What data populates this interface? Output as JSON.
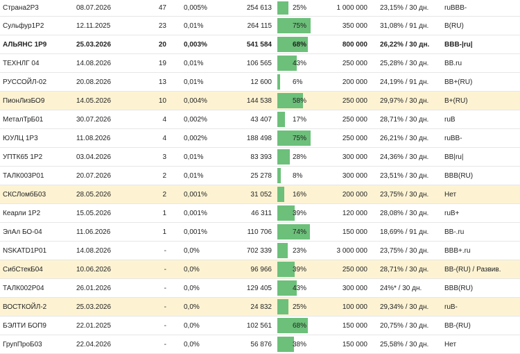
{
  "rows": [
    {
      "name": "Страна2Р3",
      "date": "08.07.2026",
      "count": "47",
      "pct": "0,005%",
      "volume": "254 613",
      "share": "25%",
      "share_v": 0.25,
      "amount": "1 000 000",
      "yield": "23,15% / 30 дн.",
      "rating": "ruBBB-",
      "hl": false,
      "bold": false
    },
    {
      "name": "Сульфур1Р2",
      "date": "12.11.2025",
      "count": "23",
      "pct": "0,01%",
      "volume": "264 115",
      "share": "75%",
      "share_v": 0.75,
      "amount": "350 000",
      "yield": "31,08% / 91 дн.",
      "rating": "B(RU)",
      "hl": false,
      "bold": false
    },
    {
      "name": "АЛЬЯНС 1Р9",
      "date": "25.03.2026",
      "count": "20",
      "pct": "0,003%",
      "volume": "541 584",
      "share": "68%",
      "share_v": 0.68,
      "amount": "800 000",
      "yield": "26,22% / 30 дн.",
      "rating": "BBB-|ru|",
      "hl": false,
      "bold": true
    },
    {
      "name": "ТЕХНЛГ 04",
      "date": "14.08.2026",
      "count": "19",
      "pct": "0,01%",
      "volume": "106 565",
      "share": "43%",
      "share_v": 0.43,
      "amount": "250 000",
      "yield": "25,28% / 30 дн.",
      "rating": "BB.ru",
      "hl": false,
      "bold": false
    },
    {
      "name": "РУССОЙЛ-02",
      "date": "20.08.2026",
      "count": "13",
      "pct": "0,01%",
      "volume": "12 600",
      "share": "6%",
      "share_v": 0.06,
      "amount": "200 000",
      "yield": "24,19% / 91 дн.",
      "rating": "BB+(RU)",
      "hl": false,
      "bold": false
    },
    {
      "name": "ПионЛизБО9",
      "date": "14.05.2026",
      "count": "10",
      "pct": "0,004%",
      "volume": "144 538",
      "share": "58%",
      "share_v": 0.58,
      "amount": "250 000",
      "yield": "29,97% / 30 дн.",
      "rating": "B+(RU)",
      "hl": true,
      "bold": false
    },
    {
      "name": "МеталТрБ01",
      "date": "30.07.2026",
      "count": "4",
      "pct": "0,002%",
      "volume": "43 407",
      "share": "17%",
      "share_v": 0.17,
      "amount": "250 000",
      "yield": "28,71% / 30 дн.",
      "rating": "ruB",
      "hl": false,
      "bold": false
    },
    {
      "name": "ЮУЛЦ 1Р3",
      "date": "11.08.2026",
      "count": "4",
      "pct": "0,002%",
      "volume": "188 498",
      "share": "75%",
      "share_v": 0.75,
      "amount": "250 000",
      "yield": "26,21% / 30 дн.",
      "rating": "ruBB-",
      "hl": false,
      "bold": false
    },
    {
      "name": "УПТК65 1Р2",
      "date": "03.04.2026",
      "count": "3",
      "pct": "0,01%",
      "volume": "83 393",
      "share": "28%",
      "share_v": 0.28,
      "amount": "300 000",
      "yield": "24,36% / 30 дн.",
      "rating": "BB|ru|",
      "hl": false,
      "bold": false
    },
    {
      "name": "ТАЛК003Р01",
      "date": "20.07.2026",
      "count": "2",
      "pct": "0,01%",
      "volume": "25 278",
      "share": "8%",
      "share_v": 0.08,
      "amount": "300 000",
      "yield": "23,51% / 30 дн.",
      "rating": "BBB(RU)",
      "hl": false,
      "bold": false
    },
    {
      "name": "СКСЛомбБ03",
      "date": "28.05.2026",
      "count": "2",
      "pct": "0,001%",
      "volume": "31 052",
      "share": "16%",
      "share_v": 0.16,
      "amount": "200 000",
      "yield": "23,75% / 30 дн.",
      "rating": "Нет",
      "hl": true,
      "bold": false
    },
    {
      "name": "Кеарли 1Р2",
      "date": "15.05.2026",
      "count": "1",
      "pct": "0,001%",
      "volume": "46 311",
      "share": "39%",
      "share_v": 0.39,
      "amount": "120 000",
      "yield": "28,08% / 30 дн.",
      "rating": "ruB+",
      "hl": false,
      "bold": false
    },
    {
      "name": "ЭлАл БО-04",
      "date": "11.06.2026",
      "count": "1",
      "pct": "0,001%",
      "volume": "110 706",
      "share": "74%",
      "share_v": 0.74,
      "amount": "150 000",
      "yield": "18,69% / 91 дн.",
      "rating": "BB-.ru",
      "hl": false,
      "bold": false
    },
    {
      "name": "NSKATD1P01",
      "date": "14.08.2026",
      "count": "-",
      "pct": "0,0%",
      "volume": "702 339",
      "share": "23%",
      "share_v": 0.23,
      "amount": "3 000 000",
      "yield": "23,75% / 30 дн.",
      "rating": "BBB+.ru",
      "hl": false,
      "bold": false
    },
    {
      "name": "СибСтекБ04",
      "date": "10.06.2026",
      "count": "-",
      "pct": "0,0%",
      "volume": "96 966",
      "share": "39%",
      "share_v": 0.39,
      "amount": "250 000",
      "yield": "28,71% / 30 дн.",
      "rating": "BB-(RU) / Развив.",
      "hl": true,
      "bold": false
    },
    {
      "name": "ТАЛК002Р04",
      "date": "26.01.2026",
      "count": "-",
      "pct": "0,0%",
      "volume": "129 405",
      "share": "43%",
      "share_v": 0.43,
      "amount": "300 000",
      "yield": "24%* / 30 дн.",
      "rating": "BBB(RU)",
      "hl": false,
      "bold": false
    },
    {
      "name": "ВОСТКОЙЛ-2",
      "date": "25.03.2026",
      "count": "-",
      "pct": "0,0%",
      "volume": "24 832",
      "share": "25%",
      "share_v": 0.25,
      "amount": "100 000",
      "yield": "29,34% / 30 дн.",
      "rating": "ruB-",
      "hl": true,
      "bold": false
    },
    {
      "name": "БЭЛТИ БОП9",
      "date": "22.01.2025",
      "count": "-",
      "pct": "0,0%",
      "volume": "102 561",
      "share": "68%",
      "share_v": 0.68,
      "amount": "150 000",
      "yield": "20,75% / 30 дн.",
      "rating": "BB-(RU)",
      "hl": false,
      "bold": false
    },
    {
      "name": "ГрупПроБ03",
      "date": "22.04.2026",
      "count": "-",
      "pct": "0,0%",
      "volume": "56 876",
      "share": "38%",
      "share_v": 0.38,
      "amount": "150 000",
      "yield": "25,58% / 30 дн.",
      "rating": "Нет",
      "hl": false,
      "bold": false
    }
  ]
}
